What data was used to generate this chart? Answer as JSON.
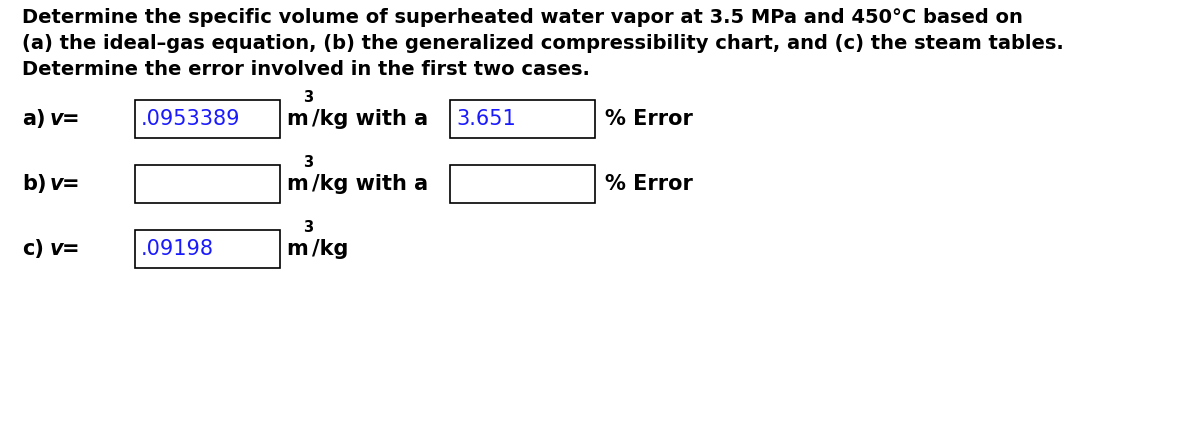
{
  "title_line1": "Determine the specific volume of superheated water vapor at 3.5 MPa and 450°C based on",
  "title_line2": "(a) the ideal–gas equation, (b) the generalized compressibility chart, and (c) the steam tables.",
  "title_line3": "Determine the error involved in the first two cases.",
  "row_a_value": ".0953389",
  "row_a_error_value": "3.651",
  "row_b_value": "",
  "row_b_error_value": "",
  "row_c_value": ".09198",
  "box_edge_color": "#000000",
  "box_face_color": "#ffffff",
  "filled_text_color": "#1a1aff",
  "background_color": "#ffffff",
  "title_fontsize": 14.0,
  "body_fontsize": 15.0,
  "sup_fontsize": 10.5
}
